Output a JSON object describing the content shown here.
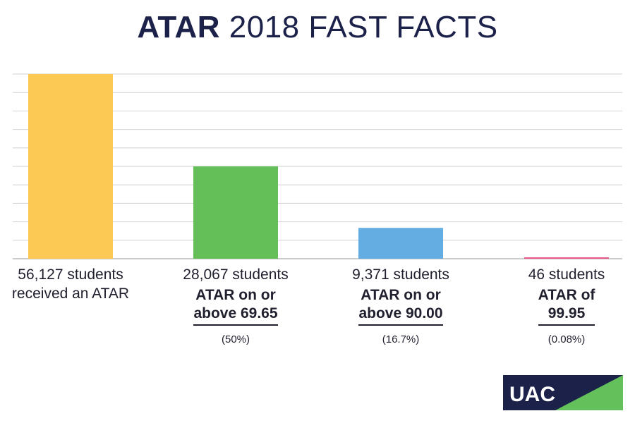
{
  "title": {
    "bold": "ATAR",
    "rest": " 2018 FAST FACTS"
  },
  "colors": {
    "title": "#1b2149",
    "grid": "#d2d2d2",
    "logo_navy": "#1b2149",
    "logo_green": "#63c05a"
  },
  "chart_data": {
    "type": "bar",
    "categories": [
      "56,127 students",
      "28,067 students",
      "9,371 students",
      "46 students"
    ],
    "values": [
      56127,
      28067,
      9371,
      46
    ],
    "ylim": [
      0,
      56127
    ],
    "grid": true,
    "gridlines": 10,
    "colors": [
      "#fcc954",
      "#64bf58",
      "#63ade2",
      "#e85a8a"
    ],
    "labels": [
      {
        "count": "56,127 students",
        "desc": "received an ATAR",
        "pct": ""
      },
      {
        "count": "28,067 students",
        "desc": "ATAR on or above 69.65",
        "pct": "(50%)"
      },
      {
        "count": "9,371 students",
        "desc": "ATAR on or above 90.00",
        "pct": "(16.7%)"
      },
      {
        "count": "46 students",
        "desc": "ATAR of 99.95",
        "pct": "(0.08%)"
      }
    ]
  },
  "logo": {
    "text": "UAC"
  }
}
